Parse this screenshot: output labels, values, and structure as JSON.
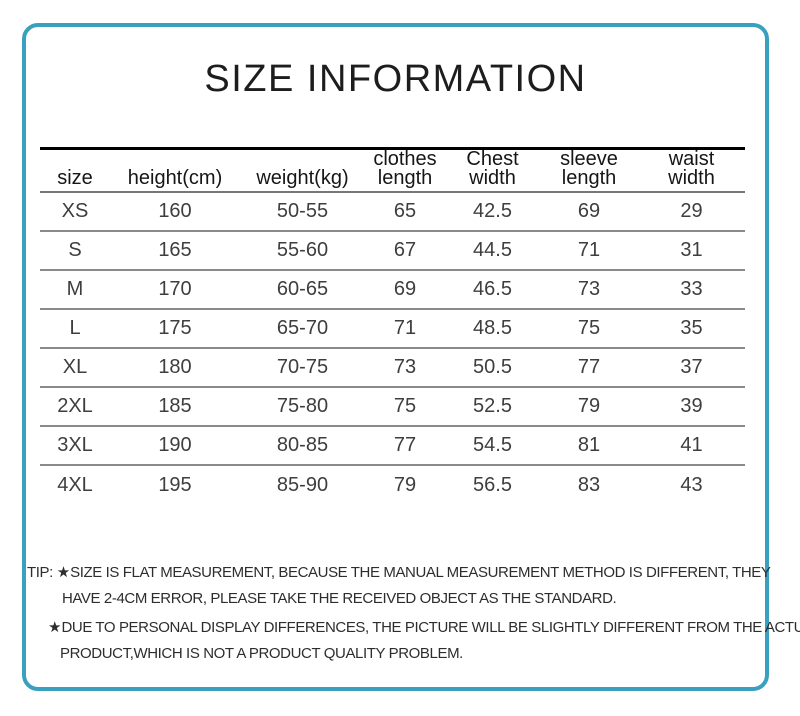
{
  "title": "SIZE INFORMATION",
  "frame": {
    "border_color": "#39A0C0"
  },
  "table": {
    "headers": [
      {
        "line1": "size"
      },
      {
        "line1": "height(cm)"
      },
      {
        "line1": "weight(kg)"
      },
      {
        "line1": "clothes",
        "line2": "length"
      },
      {
        "line1": "Chest",
        "line2": "width"
      },
      {
        "line1": "sleeve",
        "line2": "length"
      },
      {
        "line1": "waist",
        "line2": "width"
      }
    ],
    "rows": [
      [
        "XS",
        "160",
        "50-55",
        "65",
        "42.5",
        "69",
        "29"
      ],
      [
        "S",
        "165",
        "55-60",
        "67",
        "44.5",
        "71",
        "31"
      ],
      [
        "M",
        "170",
        "60-65",
        "69",
        "46.5",
        "73",
        "33"
      ],
      [
        "L",
        "175",
        "65-70",
        "71",
        "48.5",
        "75",
        "35"
      ],
      [
        "XL",
        "180",
        "70-75",
        "73",
        "50.5",
        "77",
        "37"
      ],
      [
        "2XL",
        "185",
        "75-80",
        "75",
        "52.5",
        "79",
        "39"
      ],
      [
        "3XL",
        "190",
        "80-85",
        "77",
        "54.5",
        "81",
        "41"
      ],
      [
        "4XL",
        "195",
        "85-90",
        "79",
        "56.5",
        "83",
        "43"
      ]
    ]
  },
  "tips": {
    "label": "TIP:",
    "items": [
      {
        "star": "★",
        "line1": "SIZE IS FLAT MEASUREMENT, BECAUSE THE MANUAL MEASUREMENT METHOD IS DIFFERENT, THEY",
        "line2": "HAVE 2-4CM ERROR, PLEASE TAKE THE RECEIVED OBJECT AS THE STANDARD."
      },
      {
        "star": "★",
        "line1": "DUE TO PERSONAL DISPLAY DIFFERENCES, THE PICTURE WILL BE SLIGHTLY DIFFERENT FROM THE ACTUAL",
        "line2": "PRODUCT,WHICH IS NOT A PRODUCT QUALITY PROBLEM."
      }
    ]
  }
}
